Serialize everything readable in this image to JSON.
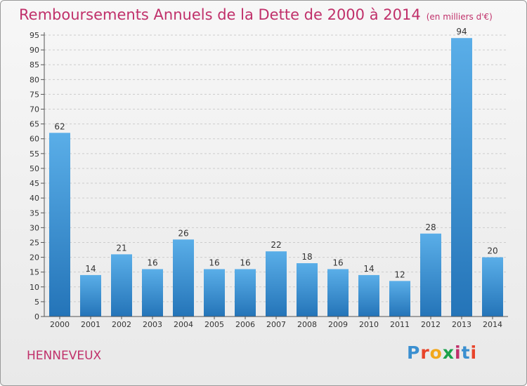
{
  "title": "Remboursements Annuels de la Dette de 2000 à 2014",
  "subtitle": "(en milliers d'€)",
  "commune": "HENNEVEUX",
  "logo": {
    "text": "Proxiti",
    "colors": [
      "#3a8fd0",
      "#e8442a",
      "#f2a81d",
      "#1aa24b",
      "#c0306a",
      "#3a8fd0",
      "#e8442a"
    ]
  },
  "colors": {
    "title": "#c0306a",
    "bar_light": "#5aaee8",
    "bar_dark": "#2474b8"
  },
  "chart_data": {
    "type": "bar",
    "title": "Remboursements Annuels de la Dette de 2000 à 2014",
    "subtitle": "(en milliers d'€)",
    "categories": [
      "2000",
      "2001",
      "2002",
      "2003",
      "2004",
      "2005",
      "2006",
      "2007",
      "2008",
      "2009",
      "2010",
      "2011",
      "2012",
      "2013",
      "2014"
    ],
    "values": [
      62,
      14,
      21,
      16,
      26,
      16,
      16,
      22,
      18,
      16,
      14,
      12,
      28,
      94,
      20
    ],
    "xlabel": "",
    "ylabel": "",
    "ylim": [
      0,
      95
    ],
    "yticks": [
      0,
      5,
      10,
      15,
      20,
      25,
      30,
      35,
      40,
      45,
      50,
      55,
      60,
      65,
      70,
      75,
      80,
      85,
      90,
      95
    ],
    "grid": true,
    "data_labels": true,
    "legend": "none"
  }
}
